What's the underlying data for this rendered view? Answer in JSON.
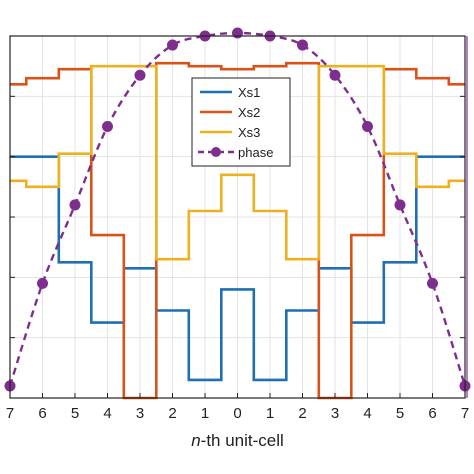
{
  "chart_data": {
    "type": "line",
    "xlabel": "n-th unit-cell",
    "x_tick_labels": [
      "7",
      "6",
      "5",
      "4",
      "3",
      "2",
      "1",
      "0",
      "1",
      "2",
      "3",
      "4",
      "5",
      "6",
      "7"
    ],
    "x_index": [
      -7,
      -6,
      -5,
      -4,
      -3,
      -2,
      -1,
      0,
      1,
      2,
      3,
      4,
      5,
      6,
      7
    ],
    "xlim": [
      -7,
      7
    ],
    "ylim": [
      0,
      6
    ],
    "yticks": [
      0,
      1,
      2,
      3,
      4,
      5,
      6
    ],
    "grid": true,
    "legend_placement": "upper-center",
    "series": [
      {
        "name": "Xs1",
        "color": "#1f6fb2",
        "style": "step",
        "values": [
          4.0,
          4.0,
          2.25,
          1.25,
          2.15,
          1.45,
          0.3,
          1.8,
          0.3,
          1.45,
          2.15,
          1.25,
          2.25,
          4.0,
          4.0
        ]
      },
      {
        "name": "Xs2",
        "color": "#d95319",
        "style": "step",
        "values": [
          5.2,
          5.3,
          5.45,
          2.7,
          0.0,
          5.55,
          5.5,
          5.45,
          5.5,
          5.55,
          0.0,
          2.7,
          5.45,
          5.3,
          5.2
        ]
      },
      {
        "name": "Xs3",
        "color": "#edb120",
        "style": "step",
        "values": [
          3.6,
          3.5,
          4.05,
          5.5,
          5.5,
          2.3,
          3.1,
          3.7,
          3.1,
          2.3,
          5.5,
          5.5,
          4.05,
          3.5,
          3.6
        ]
      },
      {
        "name": "phase",
        "color": "#7e2f8e",
        "style": "dashed-markers",
        "values": [
          0.2,
          1.9,
          3.2,
          4.5,
          5.35,
          5.85,
          6.0,
          6.05,
          6.0,
          5.85,
          5.35,
          4.5,
          3.2,
          1.9,
          0.2
        ]
      }
    ]
  }
}
